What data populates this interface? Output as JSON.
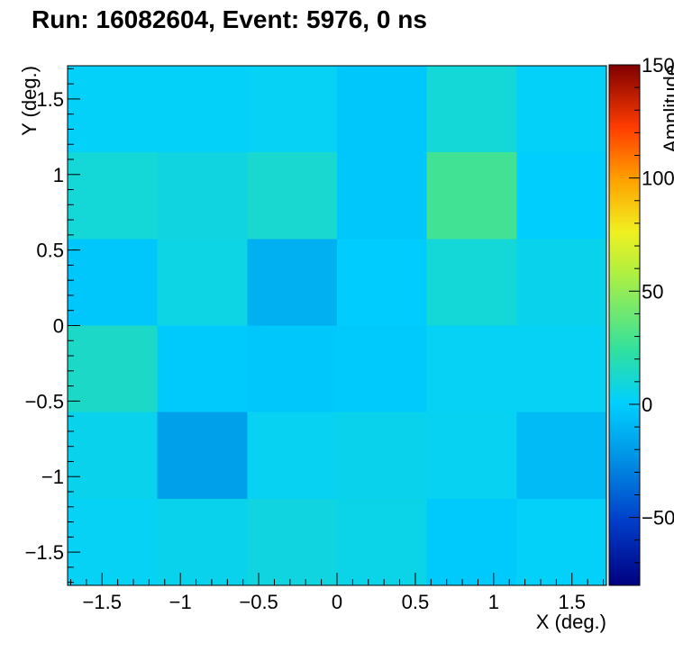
{
  "chart_data": {
    "type": "heatmap",
    "title": "Run: 16082604, Event: 5976, 0 ns",
    "xlabel": "X (deg.)",
    "ylabel": "Y (deg.)",
    "zlabel": "Amplitude",
    "xlim": [
      -1.72,
      1.72
    ],
    "ylim": [
      -1.72,
      1.72
    ],
    "zlim": [
      -80,
      150
    ],
    "x_edges": [
      -1.72,
      -1.147,
      -0.573,
      0.0,
      0.573,
      1.147,
      1.72
    ],
    "y_edges": [
      -1.72,
      -1.147,
      -0.573,
      0.0,
      0.573,
      1.147,
      1.72
    ],
    "x_ticks": [
      {
        "value": -1.5,
        "label": "−1.5"
      },
      {
        "value": -1.0,
        "label": "−1"
      },
      {
        "value": -0.5,
        "label": "−0.5"
      },
      {
        "value": 0.0,
        "label": "0"
      },
      {
        "value": 0.5,
        "label": "0.5"
      },
      {
        "value": 1.0,
        "label": "1"
      },
      {
        "value": 1.5,
        "label": "1.5"
      }
    ],
    "y_ticks": [
      {
        "value": -1.5,
        "label": "−1.5"
      },
      {
        "value": -1.0,
        "label": "−1"
      },
      {
        "value": -0.5,
        "label": "−0.5"
      },
      {
        "value": 0.0,
        "label": "0"
      },
      {
        "value": 0.5,
        "label": "0.5"
      },
      {
        "value": 1.0,
        "label": "1"
      },
      {
        "value": 1.5,
        "label": "1.5"
      }
    ],
    "z_ticks": [
      {
        "value": -50,
        "label": "−50"
      },
      {
        "value": 0,
        "label": "0"
      },
      {
        "value": 50,
        "label": "50"
      },
      {
        "value": 100,
        "label": "100"
      },
      {
        "value": 150,
        "label": "150"
      }
    ],
    "rows_top_to_bottom": [
      [
        2,
        2,
        3,
        -3,
        10,
        2
      ],
      [
        10,
        8,
        12,
        -3,
        28,
        0
      ],
      [
        -3,
        7,
        -12,
        -1,
        10,
        5
      ],
      [
        14,
        -2,
        -3,
        -2,
        3,
        3
      ],
      [
        5,
        -18,
        4,
        5,
        4,
        -8
      ],
      [
        3,
        5,
        8,
        6,
        -2,
        2
      ]
    ]
  }
}
